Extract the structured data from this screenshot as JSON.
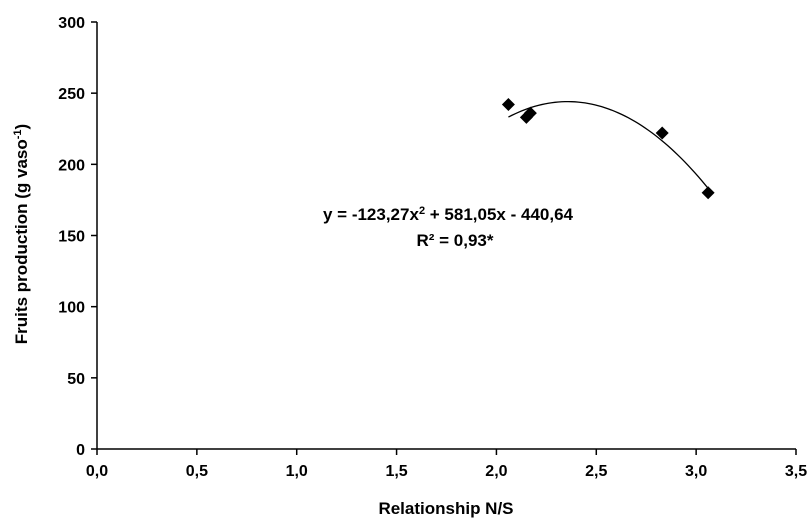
{
  "chart_data": {
    "type": "scatter",
    "title": "",
    "xlabel": "Relationship N/S",
    "ylabel_main": "Fruits production  (g vaso",
    "ylabel_sup": "-1",
    "ylabel_end": ")",
    "xlim": [
      0,
      3.5
    ],
    "ylim": [
      0,
      300
    ],
    "x_ticks": [
      0,
      0.5,
      1.0,
      1.5,
      2.0,
      2.5,
      3.0,
      3.5
    ],
    "x_tick_labels": [
      "0,0",
      "0,5",
      "1,0",
      "1,5",
      "2,0",
      "2,5",
      "3,0",
      "3,5"
    ],
    "y_ticks": [
      0,
      50,
      100,
      150,
      200,
      250,
      300
    ],
    "y_tick_labels": [
      "0",
      "50",
      "100",
      "150",
      "200",
      "250",
      "300"
    ],
    "grid": false,
    "legend": "none",
    "marker": "diamond",
    "marker_color": "#000000",
    "points": [
      {
        "x": 2.06,
        "y": 242
      },
      {
        "x": 2.15,
        "y": 233
      },
      {
        "x": 2.17,
        "y": 236
      },
      {
        "x": 2.83,
        "y": 222
      },
      {
        "x": 3.06,
        "y": 180
      }
    ],
    "trendline": {
      "type": "polynomial",
      "coefficients": {
        "a": -123.27,
        "b": 581.05,
        "c": -440.64
      },
      "x_range": [
        2.06,
        3.06
      ],
      "color": "#000000"
    },
    "annotations": {
      "equation_pre": "y = -123,27x",
      "equation_sup": "2",
      "equation_post": " + 581,05x - 440,64",
      "r_squared": "R² = 0,93*"
    }
  }
}
